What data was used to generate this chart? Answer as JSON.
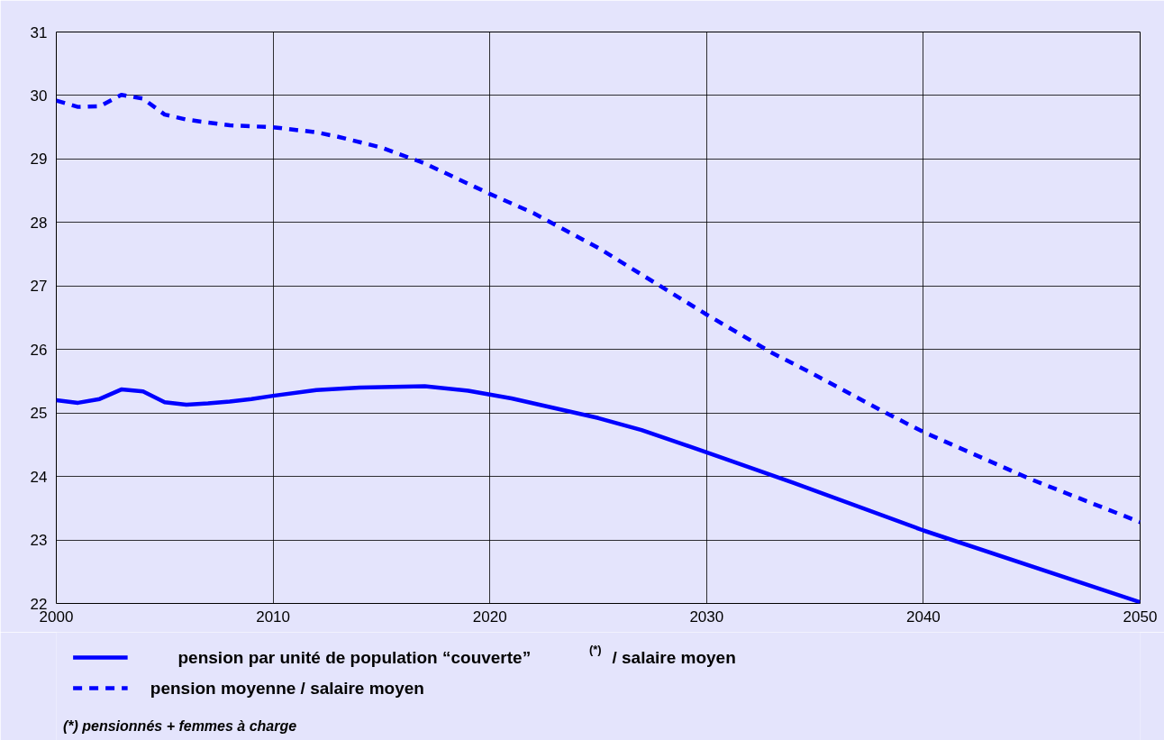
{
  "chart_data": {
    "type": "line",
    "x": [
      2000,
      2001,
      2002,
      2003,
      2004,
      2005,
      2006,
      2007,
      2008,
      2009,
      2010,
      2012,
      2014,
      2017,
      2019,
      2021,
      2025,
      2027,
      2030,
      2034,
      2040,
      2050
    ],
    "series": [
      {
        "name": "pension par unité de population “couverte” $^{(*)}$ / salaire moyen",
        "color": "#0000ff",
        "line_style": "solid",
        "values": [
          25.2,
          25.16,
          25.22,
          25.37,
          25.34,
          25.17,
          25.13,
          25.15,
          25.18,
          25.22,
          25.27,
          25.36,
          25.4,
          25.42,
          25.35,
          25.23,
          24.92,
          24.73,
          24.38,
          23.9,
          23.15,
          22.02
        ]
      },
      {
        "name": "pension moyenne / salaire moyen",
        "color": "#0000ff",
        "line_style": "dashed",
        "x": [
          2000,
          2001,
          2002,
          2003,
          2004,
          2005,
          2006,
          2008,
          2010,
          2012,
          2013,
          2015,
          2017,
          2020,
          2022,
          2025,
          2030,
          2033,
          2035,
          2038,
          2040,
          2045,
          2050
        ],
        "values": [
          29.92,
          29.82,
          29.83,
          30.01,
          29.95,
          29.7,
          29.62,
          29.53,
          29.5,
          29.42,
          29.35,
          29.18,
          28.93,
          28.45,
          28.15,
          27.6,
          26.55,
          25.95,
          25.6,
          25.05,
          24.7,
          23.95,
          23.28
        ]
      }
    ],
    "xlim": [
      2000,
      2050
    ],
    "xticks": [
      2000,
      2010,
      2020,
      2030,
      2040,
      2050
    ],
    "ylim": [
      22,
      31
    ],
    "yticks": [
      22,
      23,
      24,
      25,
      26,
      27,
      28,
      29,
      30,
      31
    ],
    "grid": true,
    "legend": "bottom",
    "marker": "none",
    "annotations": [
      "(*)  pensionnés + femmes à charge"
    ]
  }
}
